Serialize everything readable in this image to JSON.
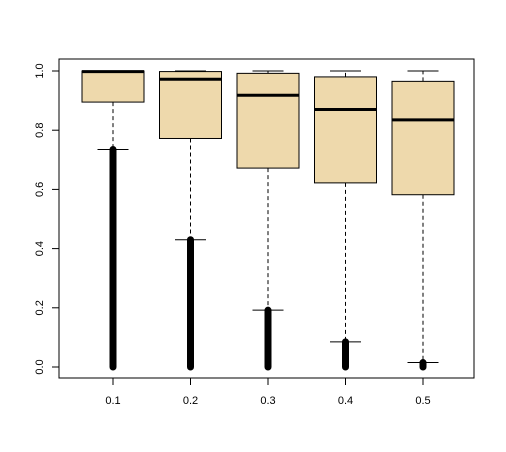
{
  "chart_data": {
    "type": "box",
    "categories": [
      "0.1",
      "0.2",
      "0.3",
      "0.4",
      "0.5"
    ],
    "y_ticks": [
      "0.0",
      "0.2",
      "0.4",
      "0.6",
      "0.8",
      "1.0"
    ],
    "ylim": [
      -0.04,
      1.04
    ],
    "grid": false,
    "box_fill": "#EED9AC",
    "line_color": "#000000",
    "boxes": [
      {
        "category": "0.1",
        "whisker_low": 0.735,
        "q1": 0.895,
        "median": 0.998,
        "q3": 1.0,
        "whisker_high": 1.0,
        "outliers_range": [
          0.0,
          0.735
        ]
      },
      {
        "category": "0.2",
        "whisker_low": 0.43,
        "q1": 0.772,
        "median": 0.972,
        "q3": 0.998,
        "whisker_high": 1.0,
        "outliers_range": [
          0.0,
          0.43
        ]
      },
      {
        "category": "0.3",
        "whisker_low": 0.192,
        "q1": 0.672,
        "median": 0.918,
        "q3": 0.992,
        "whisker_high": 1.0,
        "outliers_range": [
          0.0,
          0.192
        ]
      },
      {
        "category": "0.4",
        "whisker_low": 0.085,
        "q1": 0.622,
        "median": 0.87,
        "q3": 0.98,
        "whisker_high": 1.0,
        "outliers_range": [
          0.0,
          0.085
        ]
      },
      {
        "category": "0.5",
        "whisker_low": 0.015,
        "q1": 0.582,
        "median": 0.835,
        "q3": 0.965,
        "whisker_high": 1.0,
        "outliers_range": [
          0.0,
          0.015
        ]
      }
    ]
  }
}
